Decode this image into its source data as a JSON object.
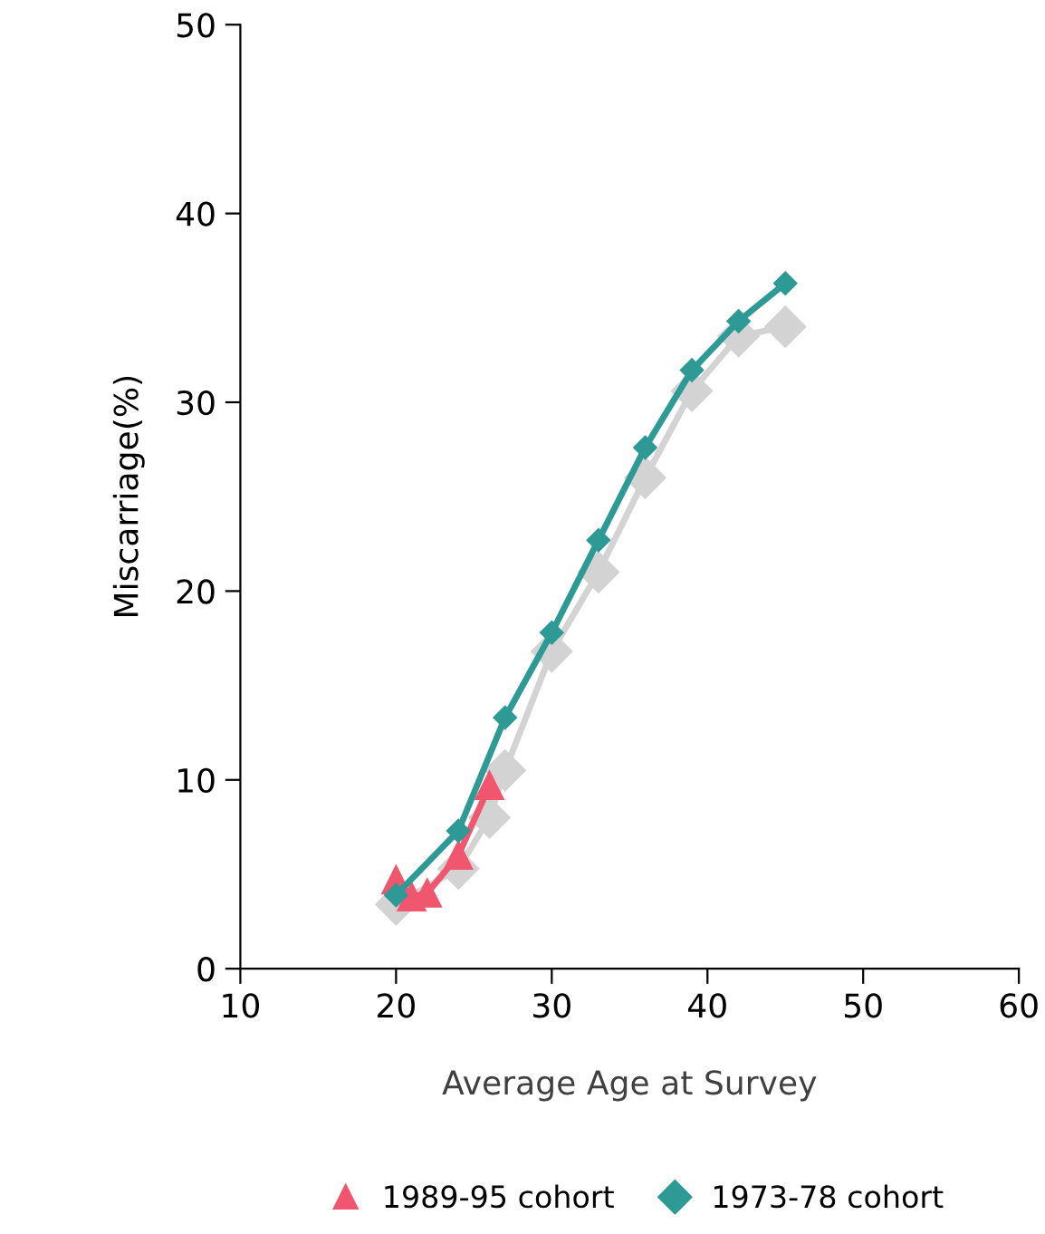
{
  "chart_data": {
    "type": "line",
    "xlabel": "Average Age at Survey",
    "ylabel": "Miscarriage(%)",
    "xlim": [
      10,
      60
    ],
    "xticks": [
      10,
      20,
      30,
      40,
      50,
      60
    ],
    "ylim": [
      0,
      50
    ],
    "yticks": [
      0,
      10,
      20,
      30,
      40,
      50
    ],
    "grid": false,
    "legend": "bottom",
    "series": [
      {
        "color": "#d3d3d3",
        "marker": "diamond",
        "x": [
          20,
          24,
          26,
          27,
          30,
          33,
          36,
          39,
          42,
          45
        ],
        "values": [
          3.4,
          5.3,
          8.0,
          10.5,
          16.8,
          21.0,
          26.0,
          30.6,
          33.5,
          34.0
        ]
      },
      {
        "name": "1989-95 cohort",
        "color": "#f0566e",
        "marker": "triangle",
        "x": [
          20,
          21,
          22,
          24,
          26
        ],
        "values": [
          4.7,
          3.8,
          4.0,
          6.0,
          9.7
        ]
      },
      {
        "name": "1973-78 cohort",
        "color": "#2e9a96",
        "marker": "diamond",
        "x": [
          20,
          24,
          27,
          30,
          33,
          36,
          39,
          42,
          45
        ],
        "values": [
          3.9,
          7.3,
          13.3,
          17.8,
          22.7,
          27.6,
          31.7,
          34.3,
          36.3
        ]
      }
    ]
  }
}
